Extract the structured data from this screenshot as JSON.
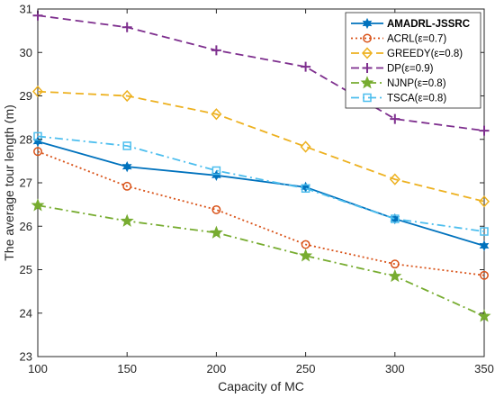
{
  "chart_data": {
    "type": "line",
    "title": "",
    "xlabel": "Capacity of MC",
    "ylabel": "The average tour length (m)",
    "x": [
      100,
      150,
      200,
      250,
      300,
      350
    ],
    "xlim": [
      100,
      350
    ],
    "ylim": [
      23,
      31
    ],
    "xticks": [
      "100",
      "150",
      "200",
      "250",
      "300",
      "350"
    ],
    "yticks": [
      "23",
      "24",
      "25",
      "26",
      "27",
      "28",
      "29",
      "30",
      "31"
    ],
    "grid": false,
    "legend_position": "top-right",
    "series": [
      {
        "name": "AMADRL-JSSRC",
        "legend_bold": true,
        "values": [
          27.95,
          27.37,
          27.17,
          26.9,
          26.17,
          25.55
        ],
        "color": "#0072BD",
        "dash": "",
        "marker": "star6"
      },
      {
        "name": "ACRL(ε=0.7)",
        "values": [
          27.72,
          26.92,
          26.38,
          25.58,
          25.13,
          24.87
        ],
        "color": "#D95319",
        "dash": "2,3",
        "marker": "circle"
      },
      {
        "name": "GREEDY(ε=0.8)",
        "values": [
          29.1,
          29.0,
          28.58,
          27.83,
          27.08,
          26.57
        ],
        "color": "#EDB120",
        "dash": "9,5",
        "marker": "diamond"
      },
      {
        "name": "DP(ε=0.9)",
        "values": [
          30.85,
          30.58,
          30.05,
          29.67,
          28.47,
          28.2
        ],
        "color": "#7E2F8E",
        "dash": "9,5",
        "marker": "plus"
      },
      {
        "name": "NJNP(ε=0.8)",
        "values": [
          26.48,
          26.12,
          25.85,
          25.32,
          24.85,
          23.93
        ],
        "color": "#77AC30",
        "dash": "9,4,2,4",
        "marker": "star5"
      },
      {
        "name": "TSCA(ε=0.8)",
        "values": [
          28.07,
          27.85,
          27.28,
          26.87,
          26.17,
          25.88
        ],
        "color": "#4DBEEE",
        "dash": "9,4,2,4",
        "marker": "square"
      }
    ]
  }
}
